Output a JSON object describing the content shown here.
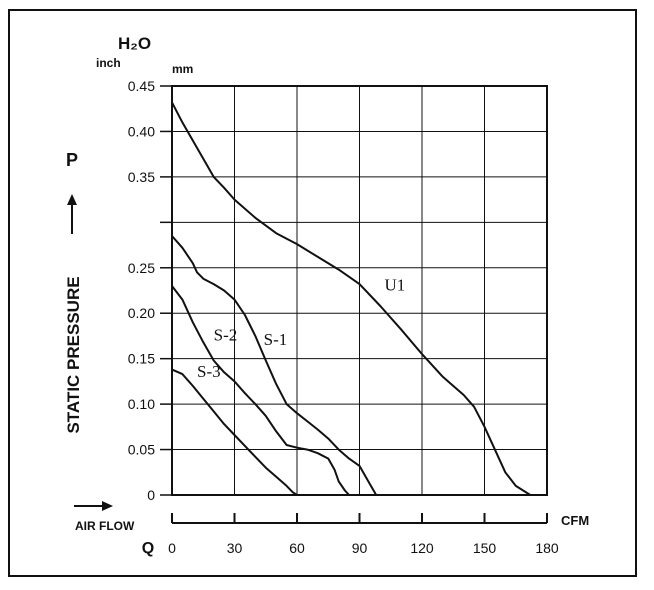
{
  "chart_data": {
    "type": "line",
    "ylabel": "STATIC PRESSURE",
    "y_symbol": "P",
    "y_unit_water": "H₂O",
    "y_unit": "inch",
    "y_unit_secondary": "mm",
    "xlabel": "AIR FLOW",
    "x_symbol": "Q",
    "x_unit": "CFM",
    "xlim": [
      0,
      180
    ],
    "ylim": [
      0,
      0.45
    ],
    "x_ticks": [
      0,
      30,
      60,
      90,
      120,
      150,
      180
    ],
    "x_tick_labels": [
      "0",
      "30",
      "60",
      "90",
      "120",
      "150",
      "180"
    ],
    "y_ticks": [
      0,
      0.05,
      0.1,
      0.15,
      0.2,
      0.25,
      0.3,
      0.35,
      0.4,
      0.45
    ],
    "y_tick_labels": [
      "0",
      "0.05",
      "0.10",
      "0.15",
      "0.20",
      "0.25",
      "",
      "0.35",
      "0.40",
      "0.45"
    ],
    "grid": true,
    "series": [
      {
        "name": "U1",
        "x": [
          0,
          5,
          10,
          15,
          20,
          25,
          30,
          40,
          50,
          60,
          70,
          80,
          90,
          100,
          110,
          120,
          130,
          140,
          145,
          150,
          155,
          160,
          165,
          172
        ],
        "y": [
          0.432,
          0.41,
          0.39,
          0.37,
          0.35,
          0.338,
          0.325,
          0.305,
          0.288,
          0.276,
          0.262,
          0.248,
          0.232,
          0.208,
          0.182,
          0.155,
          0.13,
          0.11,
          0.097,
          0.075,
          0.05,
          0.025,
          0.01,
          0
        ]
      },
      {
        "name": "S-1",
        "x": [
          0,
          5,
          10,
          12,
          15,
          20,
          25,
          30,
          35,
          40,
          45,
          50,
          55,
          60,
          65,
          70,
          75,
          80,
          85,
          90,
          95,
          98
        ],
        "y": [
          0.285,
          0.272,
          0.255,
          0.245,
          0.238,
          0.232,
          0.225,
          0.215,
          0.198,
          0.175,
          0.148,
          0.122,
          0.1,
          0.09,
          0.081,
          0.072,
          0.062,
          0.05,
          0.04,
          0.032,
          0.012,
          0
        ]
      },
      {
        "name": "S-2",
        "x": [
          0,
          5,
          10,
          15,
          20,
          25,
          30,
          35,
          40,
          45,
          50,
          55,
          60,
          65,
          70,
          75,
          78,
          80,
          83,
          85
        ],
        "y": [
          0.23,
          0.215,
          0.19,
          0.168,
          0.148,
          0.135,
          0.125,
          0.112,
          0.1,
          0.087,
          0.07,
          0.055,
          0.052,
          0.05,
          0.046,
          0.04,
          0.028,
          0.015,
          0.005,
          0
        ]
      },
      {
        "name": "S-3",
        "x": [
          0,
          5,
          10,
          15,
          20,
          25,
          30,
          35,
          40,
          45,
          50,
          55,
          58,
          60
        ],
        "y": [
          0.138,
          0.133,
          0.12,
          0.106,
          0.092,
          0.078,
          0.066,
          0.054,
          0.042,
          0.03,
          0.02,
          0.01,
          0.003,
          0
        ]
      }
    ]
  }
}
